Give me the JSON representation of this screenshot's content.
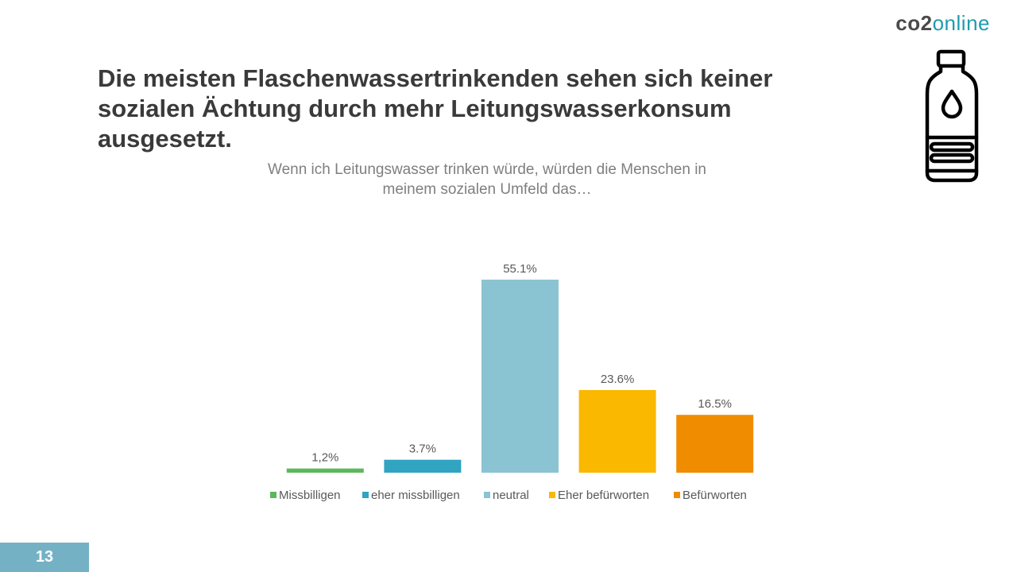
{
  "logo": {
    "part1": "co2",
    "part2": "online"
  },
  "title": "Die meisten Flaschenwassertrinkenden sehen sich keiner sozialen Ächtung durch mehr Leitungswasserkonsum ausgesetzt.",
  "subtitle_line1": "Wenn ich Leitungswasser trinken würde, würden die Menschen in",
  "subtitle_line2": "meinem sozialen Umfeld das…",
  "page_number": "13",
  "icon": "water-bottle-icon",
  "chart_data": {
    "type": "bar",
    "categories": [
      "Missbilligen",
      "eher missbilligen",
      "neutral",
      "Eher befürworten",
      "Befürworten"
    ],
    "values": [
      1.2,
      3.7,
      55.1,
      23.6,
      16.5
    ],
    "data_labels": [
      "1,2%",
      "3.7%",
      "55.1%",
      "23.6%",
      "16.5%"
    ],
    "colors": [
      "#5cb85c",
      "#31a4c2",
      "#8ac3d1",
      "#fbb800",
      "#f08c00"
    ],
    "legend": "bottom",
    "grid": false,
    "ylim": [
      0,
      55.1
    ]
  }
}
